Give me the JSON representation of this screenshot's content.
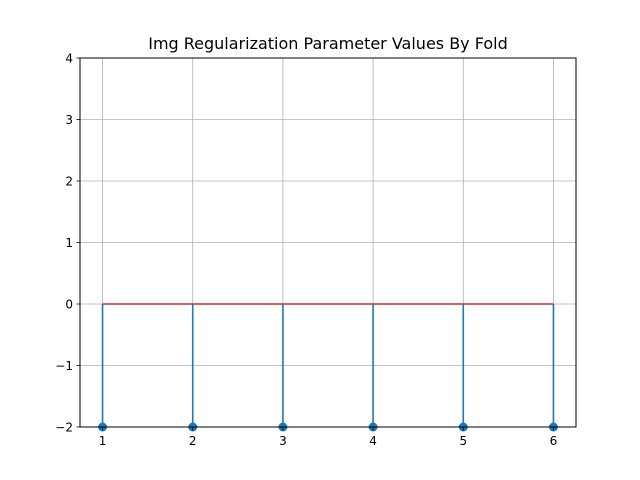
{
  "chart_data": {
    "type": "stem",
    "title": "Img Regularization Parameter Values By Fold",
    "xlabel": "",
    "ylabel": "",
    "x": [
      1,
      2,
      3,
      4,
      5,
      6
    ],
    "values": [
      -2,
      -2,
      -2,
      -2,
      -2,
      -2
    ],
    "baseline": 0,
    "xlim": [
      0.75,
      6.25
    ],
    "ylim": [
      -2,
      4
    ],
    "xticks": [
      "1",
      "2",
      "3",
      "4",
      "5",
      "6"
    ],
    "yticks": [
      "−2",
      "−1",
      "0",
      "1",
      "2",
      "3",
      "4"
    ],
    "grid": true,
    "colors": {
      "stem": "#1f77b4",
      "baseline": "#d62728",
      "grid": "#b0b0b0",
      "axes": "#000000"
    }
  }
}
